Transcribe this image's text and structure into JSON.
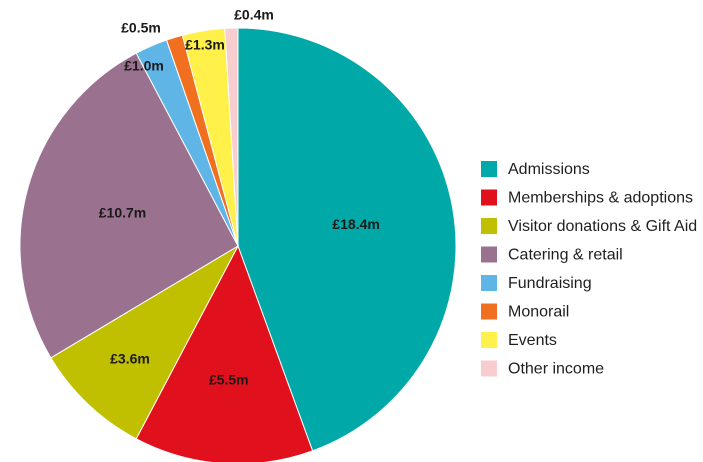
{
  "chart_data": {
    "type": "pie",
    "unit_prefix": "£",
    "unit_suffix": "m",
    "legend_position": "right",
    "slices": [
      {
        "name": "Admissions",
        "value": 18.4,
        "label": "£18.4m",
        "color": "#00a8a8"
      },
      {
        "name": "Memberships & adoptions",
        "value": 5.5,
        "label": "£5.5m",
        "color": "#e0101c"
      },
      {
        "name": "Visitor donations & Gift Aid",
        "value": 3.6,
        "label": "£3.6m",
        "color": "#c0c000"
      },
      {
        "name": "Catering & retail",
        "value": 10.7,
        "label": "£10.7m",
        "color": "#9a7290"
      },
      {
        "name": "Fundraising",
        "value": 1.0,
        "label": "£1.0m",
        "color": "#5fb6e6"
      },
      {
        "name": "Monorail",
        "value": 0.5,
        "label": "£0.5m",
        "color": "#f07020"
      },
      {
        "name": "Events",
        "value": 1.3,
        "label": "£1.3m",
        "color": "#fff04a"
      },
      {
        "name": "Other income",
        "value": 0.4,
        "label": "£0.4m",
        "color": "#f7cdd0"
      }
    ],
    "legend_entries": [
      "Admissions",
      "Memberships & adoptions",
      "Visitor donations & Gift Aid",
      "Catering & retail",
      "Fundraising",
      "Monorail",
      "Events",
      "Other income"
    ]
  }
}
